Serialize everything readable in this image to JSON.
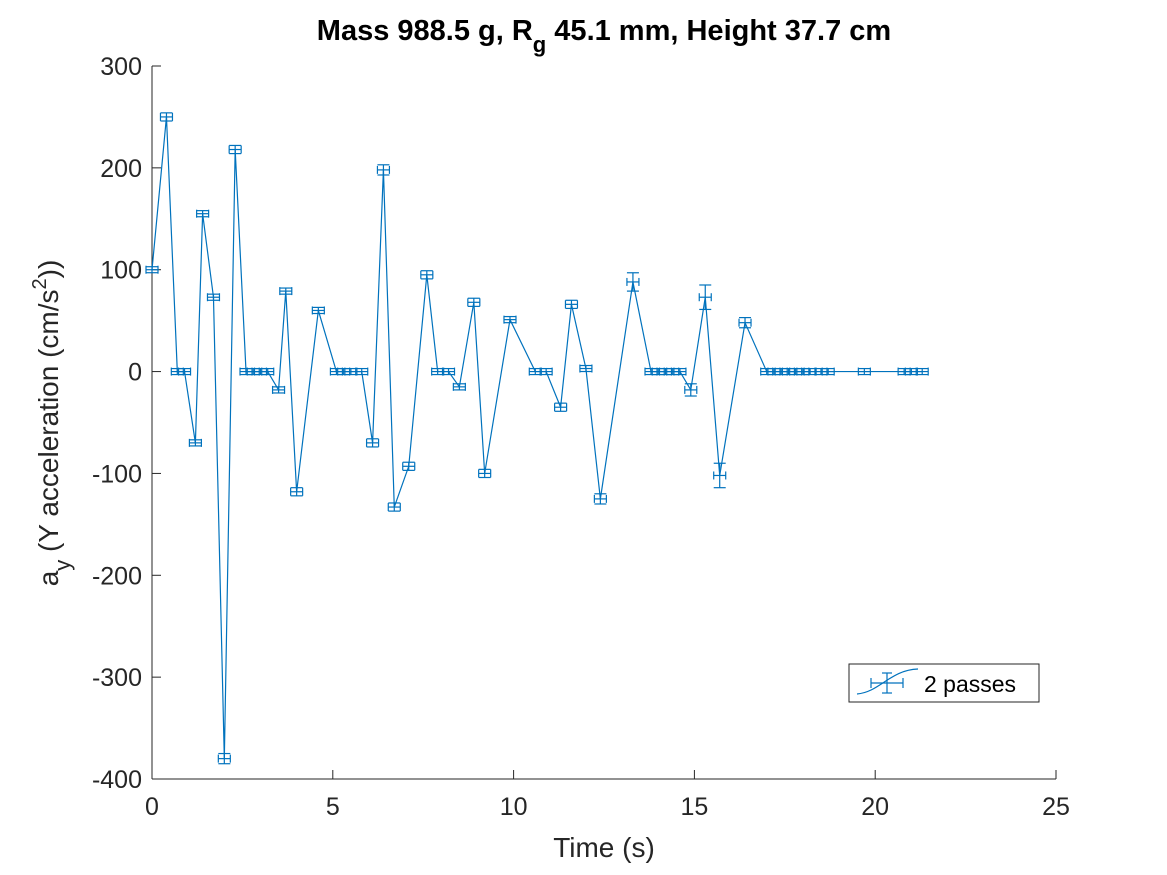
{
  "chart_data": {
    "type": "line",
    "title": {
      "prefix": "Mass 988.5 g, R",
      "subscript": "g",
      "suffix": " 45.1 mm,  Height 37.7 cm"
    },
    "xlabel": "Time (s)",
    "ylabel": {
      "prefix": "a",
      "subscript": "y",
      "middle": " (Y acceleration (cm/s",
      "superscript": "2",
      "suffix": "))"
    },
    "xlim": [
      0,
      25
    ],
    "ylim": [
      -400,
      300
    ],
    "xticks": [
      0,
      5,
      10,
      15,
      20,
      25
    ],
    "yticks": [
      -400,
      -300,
      -200,
      -100,
      0,
      100,
      200,
      300
    ],
    "grid": false,
    "legend": {
      "position": "bottom-right",
      "entries": [
        "2 passes"
      ]
    },
    "line_color": "#0072bd",
    "series": [
      {
        "name": "2 passes",
        "errorbar": true,
        "points": [
          {
            "x": 0.0,
            "y": 100,
            "err": 2
          },
          {
            "x": 0.4,
            "y": 250,
            "err": 4
          },
          {
            "x": 0.7,
            "y": 0,
            "err": 2
          },
          {
            "x": 0.9,
            "y": 0,
            "err": 2
          },
          {
            "x": 1.2,
            "y": -70,
            "err": 3
          },
          {
            "x": 1.4,
            "y": 155,
            "err": 3
          },
          {
            "x": 1.7,
            "y": 73,
            "err": 3
          },
          {
            "x": 2.0,
            "y": -380,
            "err": 5
          },
          {
            "x": 2.3,
            "y": 218,
            "err": 4
          },
          {
            "x": 2.6,
            "y": 0,
            "err": 2
          },
          {
            "x": 2.8,
            "y": 0,
            "err": 2
          },
          {
            "x": 3.0,
            "y": 0,
            "err": 2
          },
          {
            "x": 3.2,
            "y": 0,
            "err": 2
          },
          {
            "x": 3.5,
            "y": -18,
            "err": 3
          },
          {
            "x": 3.7,
            "y": 79,
            "err": 3
          },
          {
            "x": 4.0,
            "y": -118,
            "err": 4
          },
          {
            "x": 4.6,
            "y": 60,
            "err": 3
          },
          {
            "x": 5.1,
            "y": 0,
            "err": 2
          },
          {
            "x": 5.3,
            "y": 0,
            "err": 2
          },
          {
            "x": 5.5,
            "y": 0,
            "err": 2
          },
          {
            "x": 5.8,
            "y": 0,
            "err": 2
          },
          {
            "x": 6.1,
            "y": -70,
            "err": 4
          },
          {
            "x": 6.4,
            "y": 198,
            "err": 5
          },
          {
            "x": 6.7,
            "y": -133,
            "err": 4
          },
          {
            "x": 7.1,
            "y": -93,
            "err": 4
          },
          {
            "x": 7.6,
            "y": 95,
            "err": 4
          },
          {
            "x": 7.9,
            "y": 0,
            "err": 2
          },
          {
            "x": 8.2,
            "y": 0,
            "err": 2
          },
          {
            "x": 8.5,
            "y": -15,
            "err": 3
          },
          {
            "x": 8.9,
            "y": 68,
            "err": 4
          },
          {
            "x": 9.2,
            "y": -100,
            "err": 4
          },
          {
            "x": 9.9,
            "y": 51,
            "err": 3
          },
          {
            "x": 10.6,
            "y": 0,
            "err": 2
          },
          {
            "x": 10.9,
            "y": 0,
            "err": 2
          },
          {
            "x": 11.3,
            "y": -35,
            "err": 4
          },
          {
            "x": 11.6,
            "y": 66,
            "err": 4
          },
          {
            "x": 12.0,
            "y": 3,
            "err": 2
          },
          {
            "x": 12.4,
            "y": -125,
            "err": 5
          },
          {
            "x": 13.3,
            "y": 88,
            "err": 9
          },
          {
            "x": 13.8,
            "y": 0,
            "err": 2
          },
          {
            "x": 14.0,
            "y": 0,
            "err": 2
          },
          {
            "x": 14.2,
            "y": 0,
            "err": 2
          },
          {
            "x": 14.4,
            "y": 0,
            "err": 2
          },
          {
            "x": 14.6,
            "y": 0,
            "err": 2
          },
          {
            "x": 14.9,
            "y": -18,
            "err": 6
          },
          {
            "x": 15.3,
            "y": 73,
            "err": 12
          },
          {
            "x": 15.7,
            "y": -102,
            "err": 12
          },
          {
            "x": 16.4,
            "y": 48,
            "err": 5
          },
          {
            "x": 17.0,
            "y": 0,
            "err": 2
          },
          {
            "x": 17.2,
            "y": 0,
            "err": 2
          },
          {
            "x": 17.4,
            "y": 0,
            "err": 2
          },
          {
            "x": 17.6,
            "y": 0,
            "err": 2
          },
          {
            "x": 17.8,
            "y": 0,
            "err": 2
          },
          {
            "x": 18.0,
            "y": 0,
            "err": 2
          },
          {
            "x": 18.2,
            "y": 0,
            "err": 2
          },
          {
            "x": 18.5,
            "y": 0,
            "err": 2
          },
          {
            "x": 18.7,
            "y": 0,
            "err": 2
          },
          {
            "x": 19.7,
            "y": 0,
            "err": 2
          },
          {
            "x": 20.8,
            "y": 0,
            "err": 2
          },
          {
            "x": 21.0,
            "y": 0,
            "err": 2
          },
          {
            "x": 21.3,
            "y": 0,
            "err": 2
          }
        ]
      }
    ]
  }
}
